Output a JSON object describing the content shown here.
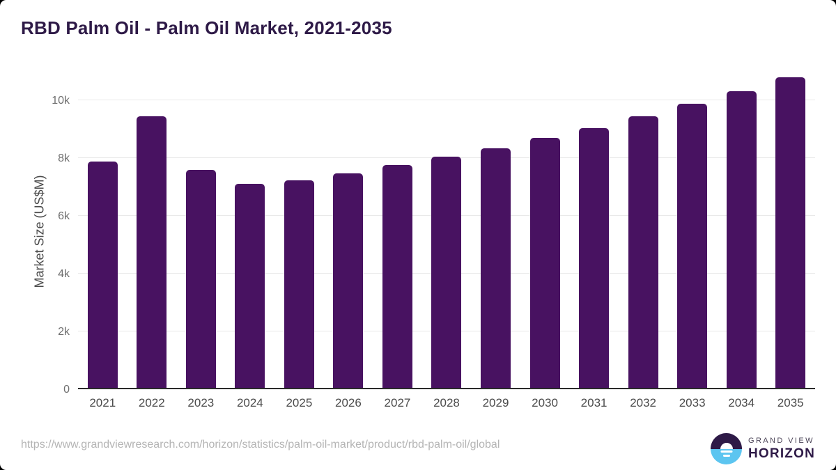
{
  "chart_data": {
    "type": "bar",
    "title": "RBD Palm Oil - Palm Oil Market, 2021-2035",
    "categories": [
      "2021",
      "2022",
      "2023",
      "2024",
      "2025",
      "2026",
      "2027",
      "2028",
      "2029",
      "2030",
      "2031",
      "2032",
      "2033",
      "2034",
      "2035"
    ],
    "values": [
      7880,
      9430,
      7570,
      7110,
      7210,
      7460,
      7760,
      8040,
      8330,
      8690,
      9030,
      9430,
      9880,
      10310,
      10780
    ],
    "xlabel": "",
    "ylabel": "Market Size (US$M)",
    "ylim": [
      0,
      11000
    ],
    "yticks": {
      "values": [
        0,
        2000,
        4000,
        6000,
        8000,
        10000
      ],
      "labels": [
        "0",
        "2k",
        "4k",
        "6k",
        "8k",
        "10k"
      ]
    },
    "grid": true,
    "legend_position": "none",
    "bar_color": "#481261"
  },
  "footer": {
    "source_url": "https://www.grandviewresearch.com/horizon/statistics/palm-oil-market/product/rbd-palm-oil/global",
    "logo": {
      "top_text": "GRAND VIEW",
      "bottom_text": "HORIZON"
    }
  },
  "colors": {
    "title": "#2e1a47",
    "bar": "#481261",
    "gridline": "#e9e9e9",
    "axis_line": "#2a2a2a",
    "y_tick_label": "#6f6f6f",
    "x_tick_label": "#4b4b4b",
    "source_url": "#b4b4b4",
    "logo_blue": "#5cc5f0",
    "logo_purple": "#2e1a47"
  }
}
